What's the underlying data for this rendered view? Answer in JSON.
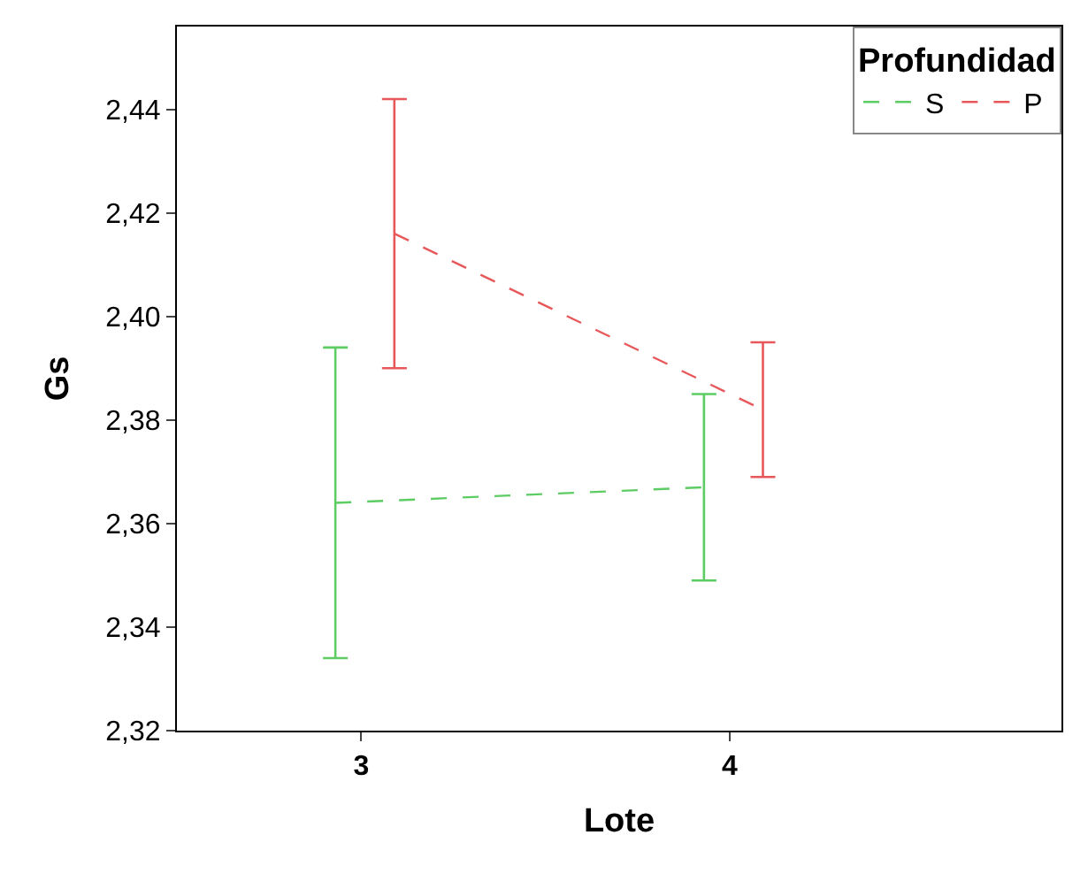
{
  "chart_data": {
    "type": "line",
    "xlabel": "Lote",
    "ylabel": "Gs",
    "legend_title": "Profundidad",
    "legend": "top right",
    "line_style": "dashed",
    "marker": "none",
    "xlim": [
      2.5,
      4.9
    ],
    "xticks": [
      3,
      4
    ],
    "ylim": [
      2.32,
      2.456
    ],
    "yticks": [
      {
        "value": 2.32,
        "label": "2,32"
      },
      {
        "value": 2.34,
        "label": "2,34"
      },
      {
        "value": 2.36,
        "label": "2,36"
      },
      {
        "value": 2.38,
        "label": "2,38"
      },
      {
        "value": 2.4,
        "label": "2,40"
      },
      {
        "value": 2.42,
        "label": "2,42"
      },
      {
        "value": 2.44,
        "label": "2,44"
      }
    ],
    "series": [
      {
        "name": "S",
        "color": "#5ccc63",
        "x": [
          2.93,
          3.93
        ],
        "values": [
          2.364,
          2.367
        ],
        "errors": [
          0.03,
          0.018
        ]
      },
      {
        "name": "P",
        "color": "#e8585a",
        "x": [
          3.09,
          4.09
        ],
        "values": [
          2.416,
          2.382
        ],
        "errors": [
          0.026,
          0.013
        ]
      }
    ]
  }
}
